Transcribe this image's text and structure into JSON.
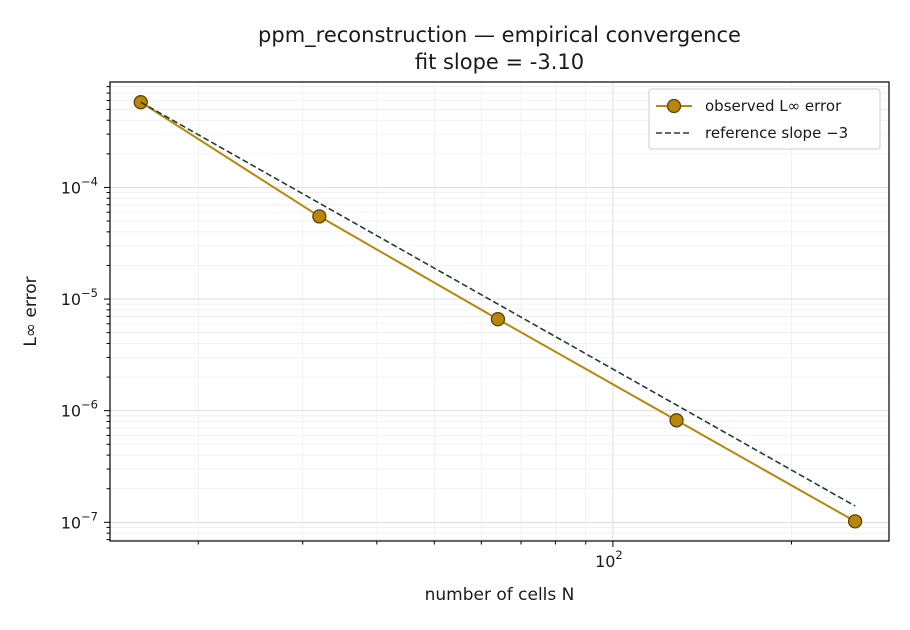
{
  "chart_data": {
    "type": "line",
    "title": "ppm_reconstruction — empirical convergence",
    "subtitle": "fit slope = -3.10",
    "xlabel": "number of cells N",
    "ylabel": "L∞ error",
    "xscale": "log",
    "yscale": "log",
    "xlim": [
      14.2,
      292
    ],
    "ylim": [
      6.8e-08,
      0.00088
    ],
    "grid": true,
    "legend_position": "top-right",
    "x_tick_labels": [
      {
        "value": 100,
        "base": "10",
        "exp": "2"
      }
    ],
    "y_tick_labels": [
      {
        "value": 0.0001,
        "base": "10",
        "exp": "−4"
      },
      {
        "value": 1e-05,
        "base": "10",
        "exp": "−5"
      },
      {
        "value": 1e-06,
        "base": "10",
        "exp": "−6"
      },
      {
        "value": 1e-07,
        "base": "10",
        "exp": "−7"
      }
    ],
    "series": [
      {
        "name": "observed L∞ error",
        "style": "solid-markers",
        "color": "#b8860b",
        "marker_edge": "#5c4306",
        "x": [
          16,
          32,
          64,
          128,
          256
        ],
        "y": [
          0.00058,
          5.5e-05,
          6.6e-06,
          8.2e-07,
          1.02e-07
        ]
      },
      {
        "name": "reference slope −3",
        "style": "dashed",
        "color": "#1f4030",
        "x": [
          16,
          256
        ],
        "y": [
          0.00058,
          1.4e-07
        ]
      }
    ]
  }
}
